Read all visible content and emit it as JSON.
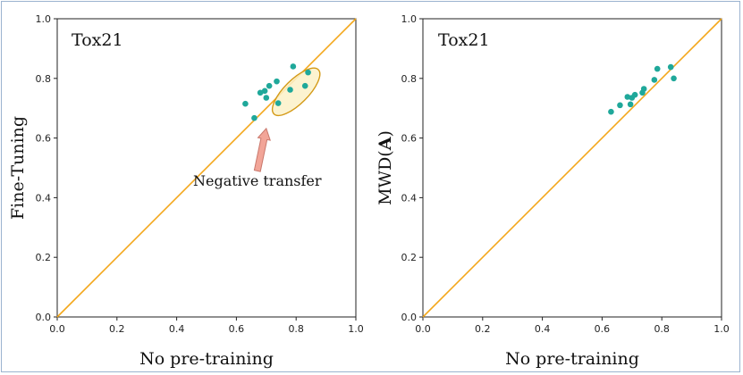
{
  "chart_data": [
    {
      "type": "scatter",
      "title": "Tox21",
      "xlabel": "No pre-training",
      "ylabel": "Fine-Tuning",
      "xlim": [
        0,
        1
      ],
      "ylim": [
        0,
        1
      ],
      "xticks": [
        "0.0",
        "0.2",
        "0.4",
        "0.6",
        "0.8",
        "1.0"
      ],
      "yticks": [
        "0.0",
        "0.2",
        "0.4",
        "0.6",
        "0.8",
        "1.0"
      ],
      "colors": {
        "points": "#1fa89a",
        "diagonal": "#f3a71b",
        "ellipse_fill": "#fbf1c8",
        "ellipse_stroke": "#d49a17",
        "arrow": "#f2a598",
        "arrow_stroke": "#c9786c"
      },
      "points": [
        {
          "x": 0.63,
          "y": 0.715
        },
        {
          "x": 0.66,
          "y": 0.667
        },
        {
          "x": 0.68,
          "y": 0.752
        },
        {
          "x": 0.695,
          "y": 0.758
        },
        {
          "x": 0.7,
          "y": 0.735
        },
        {
          "x": 0.71,
          "y": 0.775
        },
        {
          "x": 0.735,
          "y": 0.79
        },
        {
          "x": 0.74,
          "y": 0.717
        },
        {
          "x": 0.78,
          "y": 0.762
        },
        {
          "x": 0.79,
          "y": 0.84
        },
        {
          "x": 0.83,
          "y": 0.775
        },
        {
          "x": 0.84,
          "y": 0.82
        }
      ],
      "annotation": {
        "text": "Negative transfer",
        "ellipse": {
          "cx": 0.8,
          "cy": 0.755,
          "rx": 0.105,
          "ry": 0.04,
          "angle_deg": -45
        },
        "arrow": {
          "from": {
            "x": 0.67,
            "y": 0.49
          },
          "to": {
            "x": 0.7,
            "y": 0.632
          }
        },
        "label_pos": {
          "x": 0.67,
          "y": 0.44
        }
      }
    },
    {
      "type": "scatter",
      "title": "Tox21",
      "xlabel": "No pre-training",
      "ylabel": "MWD(A)",
      "ylabel_parts": [
        "MWD(",
        "A",
        ")"
      ],
      "xlim": [
        0,
        1
      ],
      "ylim": [
        0,
        1
      ],
      "xticks": [
        "0.0",
        "0.2",
        "0.4",
        "0.6",
        "0.8",
        "1.0"
      ],
      "yticks": [
        "0.0",
        "0.2",
        "0.4",
        "0.6",
        "0.8",
        "1.0"
      ],
      "colors": {
        "points": "#1fa89a",
        "diagonal": "#f3a71b"
      },
      "points": [
        {
          "x": 0.63,
          "y": 0.688
        },
        {
          "x": 0.66,
          "y": 0.71
        },
        {
          "x": 0.685,
          "y": 0.738
        },
        {
          "x": 0.695,
          "y": 0.713
        },
        {
          "x": 0.7,
          "y": 0.735
        },
        {
          "x": 0.71,
          "y": 0.745
        },
        {
          "x": 0.735,
          "y": 0.752
        },
        {
          "x": 0.74,
          "y": 0.765
        },
        {
          "x": 0.775,
          "y": 0.795
        },
        {
          "x": 0.785,
          "y": 0.832
        },
        {
          "x": 0.83,
          "y": 0.838
        },
        {
          "x": 0.84,
          "y": 0.8
        }
      ]
    }
  ]
}
